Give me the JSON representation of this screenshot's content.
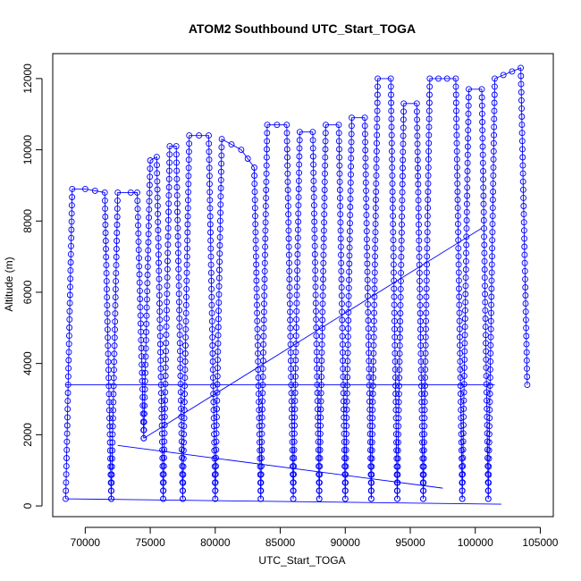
{
  "chart_data": {
    "type": "line",
    "title": "ATOM2 Southbound UTC_Start_TOGA",
    "xlabel": "UTC_Start_TOGA",
    "ylabel": "Altitude (m)",
    "xlim": [
      67500,
      106000
    ],
    "ylim": [
      -300,
      12700
    ],
    "x_ticks": [
      70000,
      75000,
      80000,
      85000,
      90000,
      95000,
      100000,
      105000
    ],
    "y_ticks": [
      0,
      2000,
      4000,
      6000,
      8000,
      10000,
      12000
    ],
    "grid": false,
    "legend": "none",
    "series_color": "#0000ff",
    "marker": "open-circle",
    "profiles": [
      {
        "x": [
          68500,
          69000,
          70000,
          71500,
          72000
        ],
        "y": [
          200,
          8900,
          8900,
          8800,
          200
        ]
      },
      {
        "x": [
          72000,
          72500,
          73500,
          74000,
          74500
        ],
        "y": [
          200,
          8800,
          8800,
          8800,
          1900
        ]
      },
      {
        "x": [
          74500,
          75000,
          75500,
          76000
        ],
        "y": [
          1900,
          9700,
          9800,
          200
        ]
      },
      {
        "x": [
          76000,
          76500,
          77000,
          77500
        ],
        "y": [
          200,
          10100,
          10100,
          200
        ]
      },
      {
        "x": [
          77500,
          78000,
          79500,
          80000
        ],
        "y": [
          200,
          10400,
          10400,
          200
        ]
      },
      {
        "x": [
          80000,
          80500,
          82000,
          83000,
          83500
        ],
        "y": [
          200,
          10300,
          10000,
          9500,
          200
        ]
      },
      {
        "x": [
          83500,
          84000,
          85500,
          86000
        ],
        "y": [
          200,
          10700,
          10700,
          200
        ]
      },
      {
        "x": [
          86000,
          86500,
          87500,
          88000
        ],
        "y": [
          200,
          10500,
          10500,
          200
        ]
      },
      {
        "x": [
          88000,
          88500,
          89500,
          90000
        ],
        "y": [
          200,
          10700,
          10700,
          200
        ]
      },
      {
        "x": [
          90000,
          90500,
          91500,
          92000
        ],
        "y": [
          200,
          10900,
          10900,
          200
        ]
      },
      {
        "x": [
          92000,
          92500,
          93500,
          94000
        ],
        "y": [
          200,
          12000,
          12000,
          200
        ]
      },
      {
        "x": [
          94000,
          94500,
          95500,
          96000
        ],
        "y": [
          200,
          11300,
          11300,
          200
        ]
      },
      {
        "x": [
          96000,
          96500,
          98500,
          99000
        ],
        "y": [
          200,
          12000,
          12000,
          200
        ]
      },
      {
        "x": [
          99000,
          99500,
          100500,
          101000
        ],
        "y": [
          200,
          11700,
          11700,
          200
        ]
      },
      {
        "x": [
          101000,
          101500,
          103500,
          104000
        ],
        "y": [
          200,
          12000,
          12300,
          3400
        ]
      }
    ],
    "connectors": [
      {
        "x": [
          68500,
          101500
        ],
        "y": [
          3400,
          3400
        ]
      },
      {
        "x": [
          68500,
          102000
        ],
        "y": [
          200,
          50
        ]
      },
      {
        "x": [
          72500,
          97500
        ],
        "y": [
          1700,
          500
        ]
      },
      {
        "x": [
          74500,
          100500
        ],
        "y": [
          1900,
          7800
        ]
      }
    ]
  }
}
